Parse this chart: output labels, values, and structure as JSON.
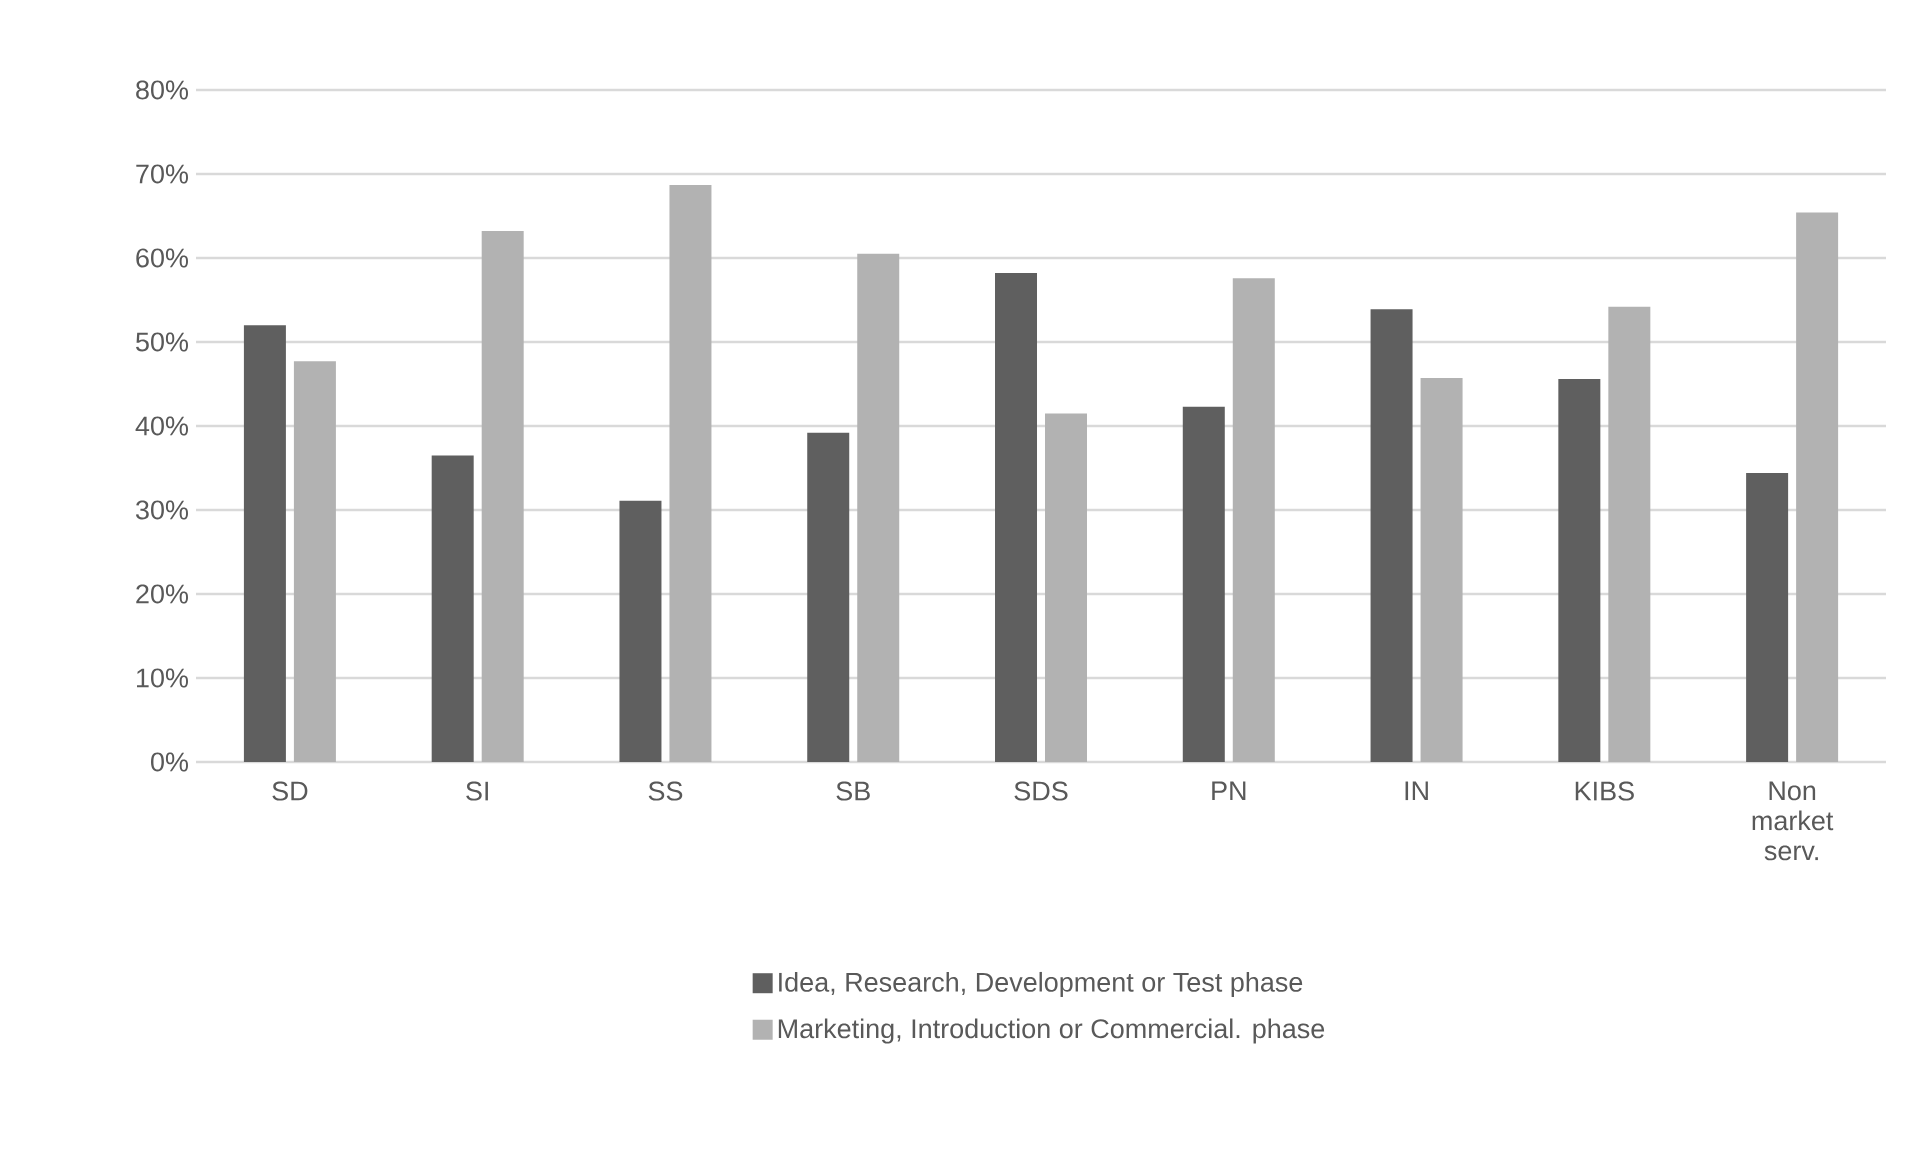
{
  "chart_data": {
    "type": "bar",
    "categories": [
      "SD",
      "SI",
      "SS",
      "SB",
      "SDS",
      "PN",
      "IN",
      "KIBS",
      "Non market serv."
    ],
    "series": [
      {
        "name": "Idea, Research, Development or Test phase",
        "color": "#5f5f5f",
        "values": [
          52.0,
          36.5,
          31.1,
          39.2,
          58.2,
          42.3,
          53.9,
          45.6,
          34.4
        ]
      },
      {
        "name": "Marketing, Introduction or Commercial. phase",
        "color": "#b2b2b2",
        "values": [
          47.7,
          63.2,
          68.7,
          60.5,
          41.5,
          57.6,
          45.7,
          54.2,
          65.4
        ]
      }
    ],
    "ylim": [
      0,
      80
    ],
    "yticks": [
      {
        "value": 0,
        "label": "0%"
      },
      {
        "value": 10,
        "label": "10%"
      },
      {
        "value": 20,
        "label": "20%"
      },
      {
        "value": 30,
        "label": "30%"
      },
      {
        "value": 40,
        "label": "40%"
      },
      {
        "value": 50,
        "label": "50%"
      },
      {
        "value": 60,
        "label": "60%"
      },
      {
        "value": 70,
        "label": "70%"
      },
      {
        "value": 80,
        "label": "80%"
      }
    ],
    "grid": "y",
    "legend": "bottom"
  }
}
